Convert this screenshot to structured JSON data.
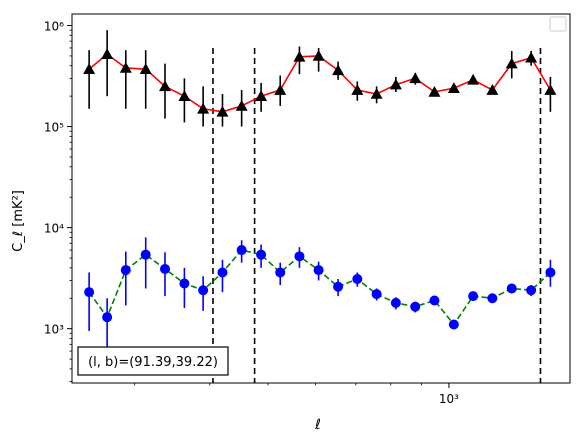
{
  "chart_data": {
    "type": "scatter",
    "title": "",
    "xlabel": "ℓ",
    "ylabel": "C_ℓ  [mK²]",
    "xscale": "log",
    "yscale": "log",
    "xlim": [
      236,
      1590
    ],
    "ylim": [
      290,
      1300000
    ],
    "x_tick_labels": [
      {
        "value": 1000,
        "label": "10³"
      }
    ],
    "y_tick_labels": [
      {
        "value": 1000,
        "label": "10³"
      },
      {
        "value": 10000,
        "label": "10⁴"
      },
      {
        "value": 100000,
        "label": "10⁵"
      },
      {
        "value": 1000000,
        "label": "10⁶"
      }
    ],
    "grid": false,
    "legend": {
      "placement": "top-right",
      "entries": []
    },
    "annotation": "(l, b)=(91.39,39.22)",
    "vlines": [
      405,
      475,
      1420
    ],
    "series": [
      {
        "marker": "triangle",
        "marker_color": "#000000",
        "line_color": "#ff0000",
        "line_style": "solid",
        "points": [
          {
            "x": 252,
            "y": 370000,
            "lo": 150000,
            "hi": 570000
          },
          {
            "x": 270,
            "y": 520000,
            "lo": 200000,
            "hi": 900000
          },
          {
            "x": 290,
            "y": 380000,
            "lo": 150000,
            "hi": 570000
          },
          {
            "x": 313,
            "y": 370000,
            "lo": 150000,
            "hi": 570000
          },
          {
            "x": 337,
            "y": 250000,
            "lo": 120000,
            "hi": 420000
          },
          {
            "x": 363,
            "y": 200000,
            "lo": 110000,
            "hi": 300000
          },
          {
            "x": 390,
            "y": 150000,
            "lo": 100000,
            "hi": 250000
          },
          {
            "x": 420,
            "y": 140000,
            "lo": 100000,
            "hi": 210000
          },
          {
            "x": 452,
            "y": 160000,
            "lo": 100000,
            "hi": 230000
          },
          {
            "x": 487,
            "y": 200000,
            "lo": 140000,
            "hi": 270000
          },
          {
            "x": 524,
            "y": 230000,
            "lo": 160000,
            "hi": 320000
          },
          {
            "x": 564,
            "y": 490000,
            "lo": 330000,
            "hi": 620000
          },
          {
            "x": 607,
            "y": 500000,
            "lo": 350000,
            "hi": 600000
          },
          {
            "x": 654,
            "y": 360000,
            "lo": 290000,
            "hi": 440000
          },
          {
            "x": 704,
            "y": 230000,
            "lo": 180000,
            "hi": 280000
          },
          {
            "x": 758,
            "y": 210000,
            "lo": 170000,
            "hi": 250000
          },
          {
            "x": 816,
            "y": 260000,
            "lo": 220000,
            "hi": 310000
          },
          {
            "x": 879,
            "y": 300000,
            "lo": 260000,
            "hi": 340000
          },
          {
            "x": 946,
            "y": 220000,
            "lo": 200000,
            "hi": 240000
          },
          {
            "x": 1019,
            "y": 240000,
            "lo": 220000,
            "hi": 260000
          },
          {
            "x": 1097,
            "y": 290000,
            "lo": 270000,
            "hi": 320000
          },
          {
            "x": 1181,
            "y": 230000,
            "lo": 210000,
            "hi": 250000
          },
          {
            "x": 1272,
            "y": 420000,
            "lo": 300000,
            "hi": 560000
          },
          {
            "x": 1370,
            "y": 480000,
            "lo": 400000,
            "hi": 560000
          },
          {
            "x": 1475,
            "y": 230000,
            "lo": 140000,
            "hi": 310000
          }
        ]
      },
      {
        "marker": "circle",
        "marker_color": "#0000ff",
        "line_color": "#008000",
        "line_style": "dashed",
        "points": [
          {
            "x": 252,
            "y": 2300,
            "lo": 950,
            "hi": 3600
          },
          {
            "x": 270,
            "y": 1300,
            "lo": 600,
            "hi": 2000
          },
          {
            "x": 290,
            "y": 3800,
            "lo": 1700,
            "hi": 5800
          },
          {
            "x": 313,
            "y": 5400,
            "lo": 2500,
            "hi": 8000
          },
          {
            "x": 337,
            "y": 3900,
            "lo": 2100,
            "hi": 5700
          },
          {
            "x": 363,
            "y": 2800,
            "lo": 1600,
            "hi": 4000
          },
          {
            "x": 390,
            "y": 2400,
            "lo": 1500,
            "hi": 3300
          },
          {
            "x": 420,
            "y": 3600,
            "lo": 2300,
            "hi": 4800
          },
          {
            "x": 452,
            "y": 6000,
            "lo": 4500,
            "hi": 7500
          },
          {
            "x": 487,
            "y": 5400,
            "lo": 4000,
            "hi": 6800
          },
          {
            "x": 524,
            "y": 3600,
            "lo": 2700,
            "hi": 4500
          },
          {
            "x": 564,
            "y": 5200,
            "lo": 4000,
            "hi": 6400
          },
          {
            "x": 607,
            "y": 3800,
            "lo": 3000,
            "hi": 4600
          },
          {
            "x": 654,
            "y": 2600,
            "lo": 2100,
            "hi": 3100
          },
          {
            "x": 704,
            "y": 3100,
            "lo": 2600,
            "hi": 3600
          },
          {
            "x": 758,
            "y": 2200,
            "lo": 1900,
            "hi": 2500
          },
          {
            "x": 816,
            "y": 1800,
            "lo": 1550,
            "hi": 2050
          },
          {
            "x": 879,
            "y": 1650,
            "lo": 1450,
            "hi": 1850
          },
          {
            "x": 946,
            "y": 1900,
            "lo": 1750,
            "hi": 2050
          },
          {
            "x": 1019,
            "y": 1100,
            "lo": 1000,
            "hi": 1200
          },
          {
            "x": 1097,
            "y": 2100,
            "lo": 1900,
            "hi": 2300
          },
          {
            "x": 1181,
            "y": 2000,
            "lo": 1850,
            "hi": 2150
          },
          {
            "x": 1272,
            "y": 2500,
            "lo": 2300,
            "hi": 2700
          },
          {
            "x": 1370,
            "y": 2400,
            "lo": 2100,
            "hi": 2700
          },
          {
            "x": 1475,
            "y": 3600,
            "lo": 2600,
            "hi": 4800
          }
        ]
      }
    ]
  }
}
